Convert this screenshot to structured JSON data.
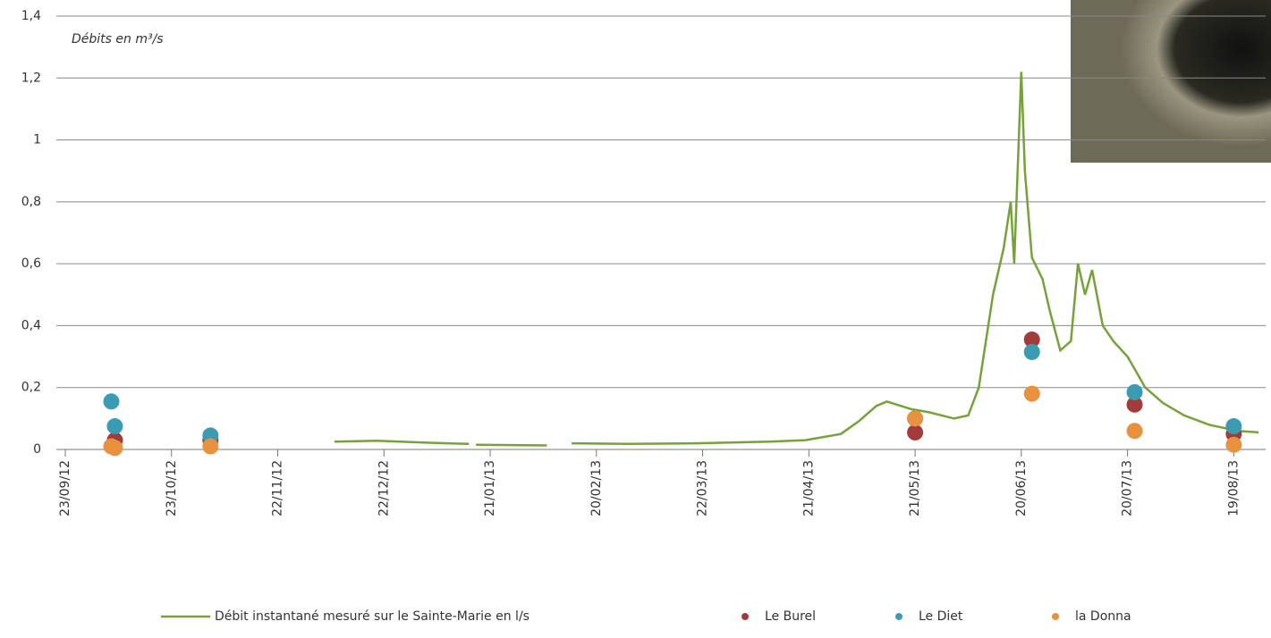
{
  "chart_data": {
    "type": "line",
    "annotation": "Débits en m³/s",
    "xlim": [
      "2012-09-23",
      "2013-08-28"
    ],
    "xticks": [
      {
        "value": "2012-09-23",
        "label": "23/09/12"
      },
      {
        "value": "2012-10-23",
        "label": "23/10/12"
      },
      {
        "value": "2012-11-22",
        "label": "22/11/12"
      },
      {
        "value": "2012-12-22",
        "label": "22/12/12"
      },
      {
        "value": "2013-01-21",
        "label": "21/01/13"
      },
      {
        "value": "2013-02-20",
        "label": "20/02/13"
      },
      {
        "value": "2013-03-22",
        "label": "22/03/13"
      },
      {
        "value": "2013-04-21",
        "label": "21/04/13"
      },
      {
        "value": "2013-05-21",
        "label": "21/05/13"
      },
      {
        "value": "2013-06-20",
        "label": "20/06/13"
      },
      {
        "value": "2013-07-20",
        "label": "20/07/13"
      },
      {
        "value": "2013-08-19",
        "label": "19/08/13"
      }
    ],
    "ylim": [
      0,
      1.4
    ],
    "yticks": [
      0,
      {
        "value": 0.2,
        "label": "0,2"
      },
      {
        "value": 0.4,
        "label": "0,4"
      },
      {
        "value": 0.6,
        "label": "0,6"
      },
      {
        "value": 0.8,
        "label": "0,8"
      },
      1,
      {
        "value": 1.2,
        "label": "1,2"
      },
      {
        "value": 1.4,
        "label": "1,4"
      }
    ],
    "grid": true,
    "legend": "bottom",
    "series": [
      {
        "name": "Débit instantané mesuré sur le Sainte-Marie en l/s",
        "type": "line",
        "color": "#77a13b",
        "x": [
          "2012-12-08",
          "2012-12-20",
          "2013-01-03",
          "2013-01-15",
          null,
          "2013-01-17",
          "2013-02-06",
          null,
          "2013-02-13",
          "2013-03-01",
          "2013-03-20",
          "2013-04-10",
          "2013-04-20",
          "2013-04-30",
          "2013-05-05",
          "2013-05-10",
          "2013-05-13",
          "2013-05-20",
          "2013-05-25",
          "2013-06-01",
          "2013-06-05",
          "2013-06-08",
          "2013-06-12",
          "2013-06-15",
          "2013-06-17",
          "2013-06-18",
          "2013-06-20",
          "2013-06-21",
          "2013-06-23",
          "2013-06-26",
          "2013-06-28",
          "2013-07-01",
          "2013-07-04",
          "2013-07-06",
          "2013-07-08",
          "2013-07-10",
          "2013-07-13",
          "2013-07-16",
          "2013-07-20",
          "2013-07-25",
          "2013-07-30",
          "2013-08-05",
          "2013-08-12",
          "2013-08-20",
          "2013-08-26"
        ],
        "values": [
          0.025,
          0.028,
          0.022,
          0.018,
          null,
          0.015,
          0.013,
          null,
          0.02,
          0.018,
          0.02,
          0.025,
          0.03,
          0.05,
          0.09,
          0.14,
          0.155,
          0.13,
          0.12,
          0.1,
          0.11,
          0.2,
          0.5,
          0.65,
          0.8,
          0.6,
          1.22,
          0.9,
          0.62,
          0.55,
          0.45,
          0.32,
          0.35,
          0.6,
          0.5,
          0.58,
          0.4,
          0.35,
          0.3,
          0.2,
          0.15,
          0.11,
          0.08,
          0.06,
          0.055
        ]
      },
      {
        "name": "Le Burel",
        "type": "scatter",
        "color": "#a33b3b",
        "x": [
          "2012-10-07",
          "2012-11-03",
          "2013-05-21",
          "2013-06-23",
          "2013-07-22",
          "2013-08-19"
        ],
        "values": [
          0.03,
          0.03,
          0.055,
          0.355,
          0.145,
          0.05
        ]
      },
      {
        "name": "Le Diet",
        "type": "scatter",
        "color": "#3a9bb3",
        "x": [
          "2012-10-06",
          "2012-10-07",
          "2012-11-03",
          "2013-05-21",
          "2013-06-23",
          "2013-07-22",
          "2013-08-19"
        ],
        "values": [
          0.155,
          0.075,
          0.045,
          0.1,
          0.315,
          0.185,
          0.075
        ]
      },
      {
        "name": "la Donna",
        "type": "scatter",
        "color": "#e8913f",
        "x": [
          "2012-10-06",
          "2012-10-07",
          "2012-11-03",
          "2013-05-21",
          "2013-06-23",
          "2013-07-22",
          "2013-08-19"
        ],
        "values": [
          0.01,
          0.005,
          0.01,
          0.1,
          0.18,
          0.06,
          0.015
        ]
      }
    ]
  }
}
